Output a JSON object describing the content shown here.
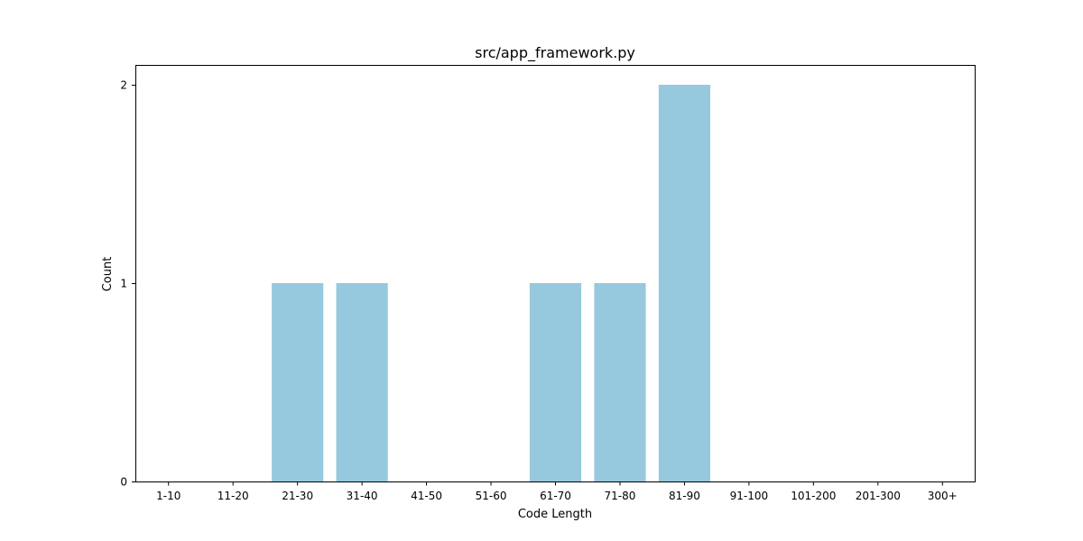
{
  "chart_data": {
    "type": "bar",
    "title": "src/app_framework.py",
    "xlabel": "Code Length",
    "ylabel": "Count",
    "categories": [
      "1-10",
      "11-20",
      "21-30",
      "31-40",
      "41-50",
      "51-60",
      "61-70",
      "71-80",
      "81-90",
      "91-100",
      "101-200",
      "201-300",
      "300+"
    ],
    "values": [
      0,
      0,
      1,
      1,
      0,
      0,
      1,
      1,
      2,
      0,
      0,
      0,
      0
    ],
    "yticks": [
      "0",
      "1",
      "2"
    ],
    "ylim": [
      0,
      2.1
    ],
    "grid": false,
    "bar_color": "#96c9dd"
  }
}
